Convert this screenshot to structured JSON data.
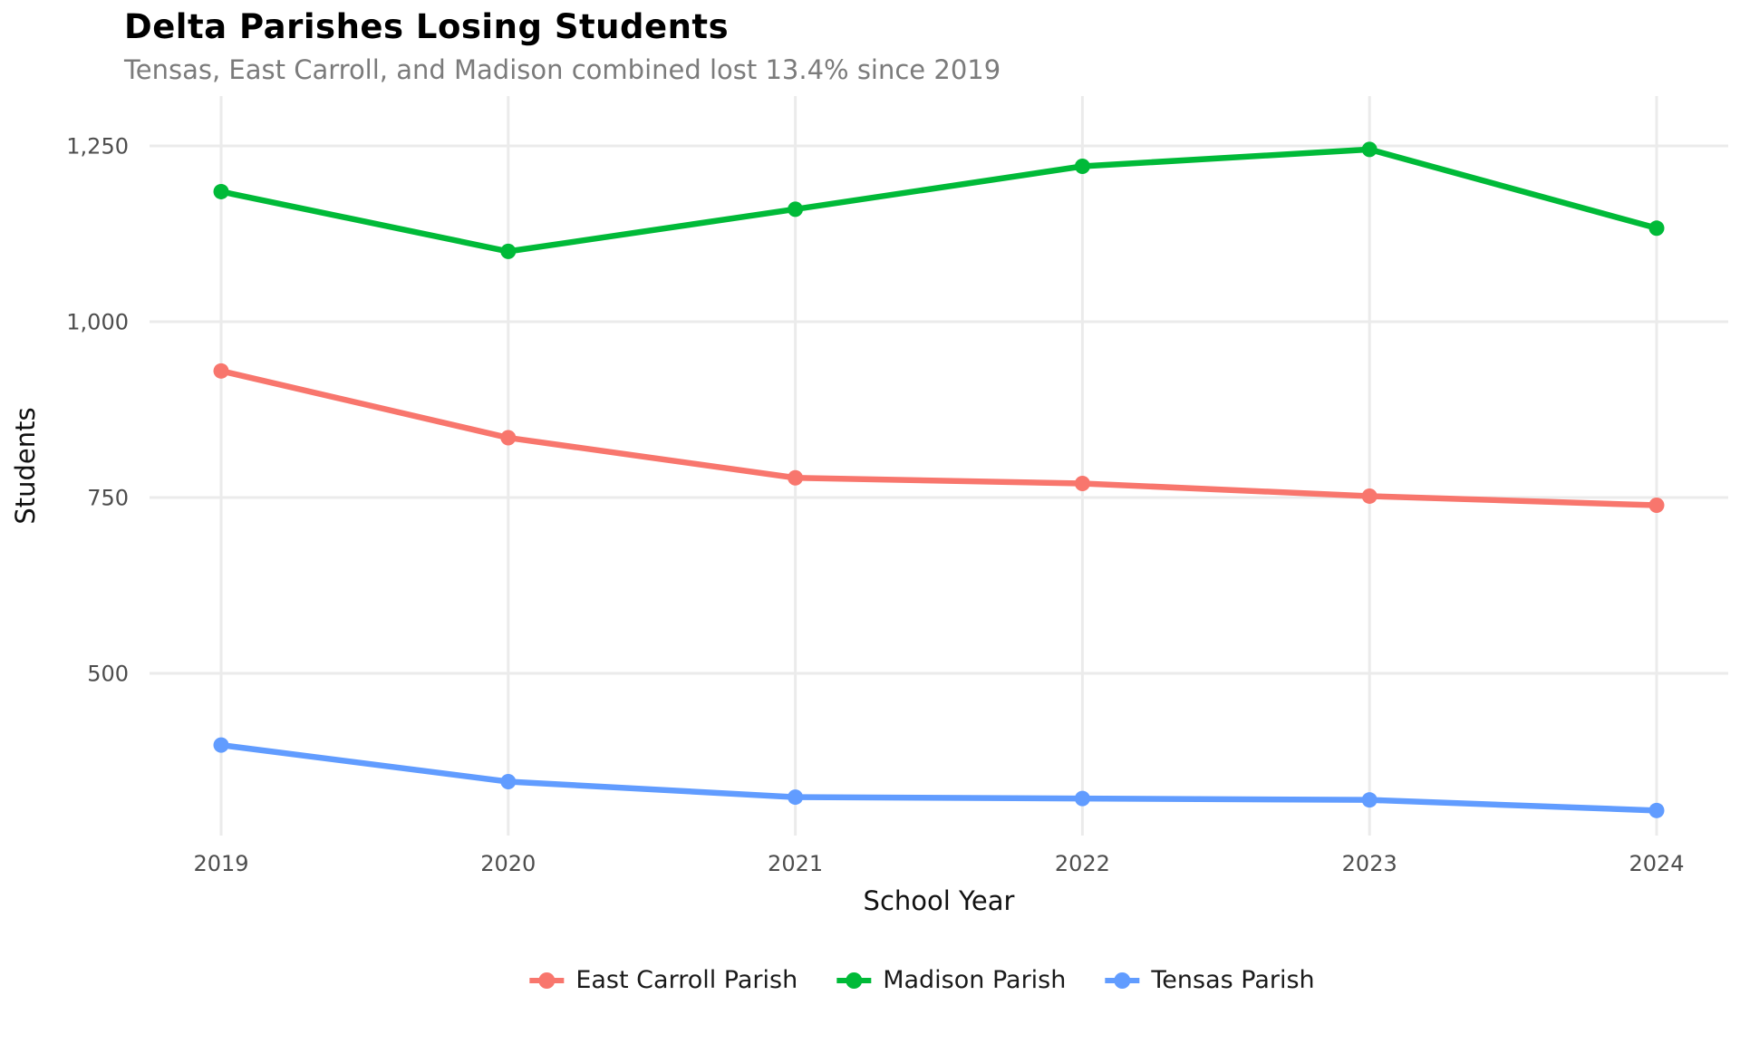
{
  "chart_data": {
    "type": "line",
    "title": "Delta Parishes Losing Students",
    "subtitle": "Tensas, East Carroll, and Madison combined lost 13.4% since 2019",
    "xlabel": "School Year",
    "ylabel": "Students",
    "categories": [
      "2019",
      "2020",
      "2021",
      "2022",
      "2023",
      "2024"
    ],
    "series": [
      {
        "name": "East Carroll Parish",
        "color": "#F8766D",
        "values": [
          930,
          835,
          778,
          770,
          752,
          739
        ]
      },
      {
        "name": "Madison Parish",
        "color": "#00BA38",
        "values": [
          1185,
          1100,
          1160,
          1221,
          1245,
          1133
        ]
      },
      {
        "name": "Tensas Parish",
        "color": "#619CFF",
        "values": [
          398,
          346,
          324,
          322,
          320,
          305
        ]
      }
    ],
    "y_ticks": {
      "values": [
        500,
        750,
        1000,
        1250
      ],
      "labels": [
        "500",
        "750",
        "1,000",
        "1,250"
      ]
    },
    "ylim": [
      270,
      1320
    ],
    "grid": true,
    "grid_color": "#ebebeb",
    "tick_label_color": "#4d4d4d",
    "axis_title_color": "#111111",
    "legend_position": "bottom"
  }
}
